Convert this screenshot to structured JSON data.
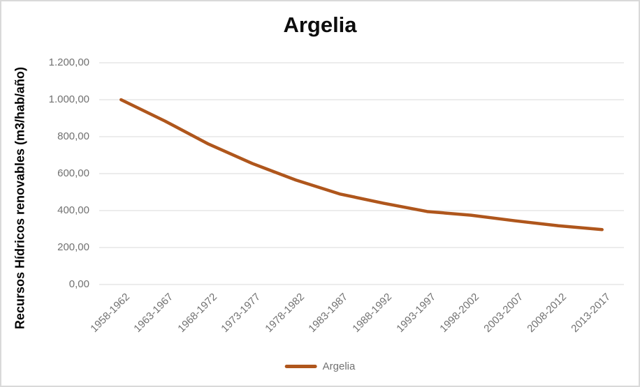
{
  "header": {
    "title": "Argelia"
  },
  "y_axis": {
    "title": "Recursos Hídricos renovables (m3/hab/año)",
    "ticks": [
      {
        "value": 1200,
        "label": "1.200,00"
      },
      {
        "value": 1000,
        "label": "1.000,00"
      },
      {
        "value": 800,
        "label": "800,00"
      },
      {
        "value": 600,
        "label": "600,00"
      },
      {
        "value": 400,
        "label": "400,00"
      },
      {
        "value": 200,
        "label": "200,00"
      },
      {
        "value": 0,
        "label": "0,00"
      }
    ]
  },
  "x_axis": {
    "labels": [
      "1958-1962",
      "1963-1967",
      "1968-1972",
      "1973-1977",
      "1978-1982",
      "1983-1987",
      "1988-1992",
      "1993-1997",
      "1998-2002",
      "2003-2007",
      "2008-2012",
      "2013-2017"
    ]
  },
  "legend": {
    "label": "Argelia"
  },
  "colors": {
    "line": "#AF561C",
    "gridline": "#d9d9d9",
    "axis_text": "#717171",
    "title_text": "#0d0d0d",
    "border": "#d9d9d9"
  },
  "chart_data": {
    "type": "line",
    "title": "Argelia",
    "categories": [
      "1958-1962",
      "1963-1967",
      "1968-1972",
      "1973-1977",
      "1978-1982",
      "1983-1987",
      "1988-1992",
      "1993-1997",
      "1998-2002",
      "2003-2007",
      "2008-2012",
      "2013-2017"
    ],
    "series": [
      {
        "name": "Argelia",
        "values": [
          1000,
          885,
          760,
          655,
          565,
          490,
          440,
          395,
          375,
          345,
          318,
          297
        ]
      }
    ],
    "xlabel": "",
    "ylabel": "Recursos Hídricos renovables (m3/hab/año)",
    "ylim": [
      0,
      1200
    ],
    "ytick_step": 200,
    "y_number_format": "es thousands dot, comma decimals, 2 places",
    "grid": true,
    "legend_position": "bottom",
    "line_width": 4.5
  }
}
